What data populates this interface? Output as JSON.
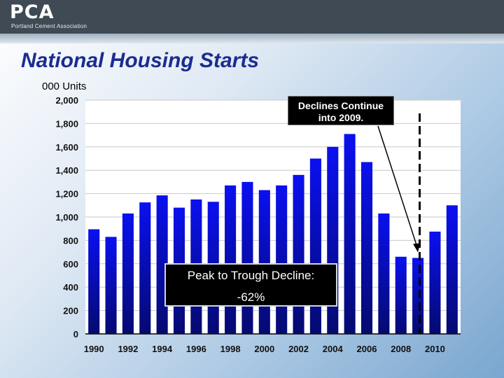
{
  "header": {
    "logo": "PCA",
    "logo_subtitle": "Portland Cement Association"
  },
  "slide": {
    "title": "National Housing Starts"
  },
  "chart_data": {
    "type": "bar",
    "ylabel": "000 Units",
    "ylim": [
      0,
      2000
    ],
    "yticks": [
      0,
      200,
      400,
      600,
      800,
      1000,
      1200,
      1400,
      1600,
      1800,
      2000
    ],
    "ytick_labels": [
      "0",
      "200",
      "400",
      "600",
      "800",
      "1,000",
      "1,200",
      "1,400",
      "1,600",
      "1,800",
      "2,000"
    ],
    "categories": [
      "1990",
      "1991",
      "1992",
      "1993",
      "1994",
      "1995",
      "1996",
      "1997",
      "1998",
      "1999",
      "2000",
      "2001",
      "2002",
      "2003",
      "2004",
      "2005",
      "2006",
      "2007",
      "2008",
      "2009",
      "2010",
      "2011"
    ],
    "xtick_labels": [
      "1990",
      "1992",
      "1994",
      "1996",
      "1998",
      "2000",
      "2002",
      "2004",
      "2006",
      "2008",
      "2010"
    ],
    "values": [
      895,
      830,
      1030,
      1125,
      1185,
      1080,
      1150,
      1130,
      1270,
      1300,
      1230,
      1270,
      1360,
      1500,
      1600,
      1710,
      1470,
      1030,
      660,
      650,
      875,
      1100
    ],
    "grid": true,
    "annotations": {
      "declines": [
        "Declines Continue",
        "into 2009."
      ],
      "peak_title": "Peak to Trough Decline:",
      "peak_value": "-62%"
    },
    "colors": {
      "bar_top": "#0a10f0",
      "bar_bottom": "#050a70",
      "plot_bg": "#ffffff",
      "grid": "#c8c8c8"
    }
  }
}
